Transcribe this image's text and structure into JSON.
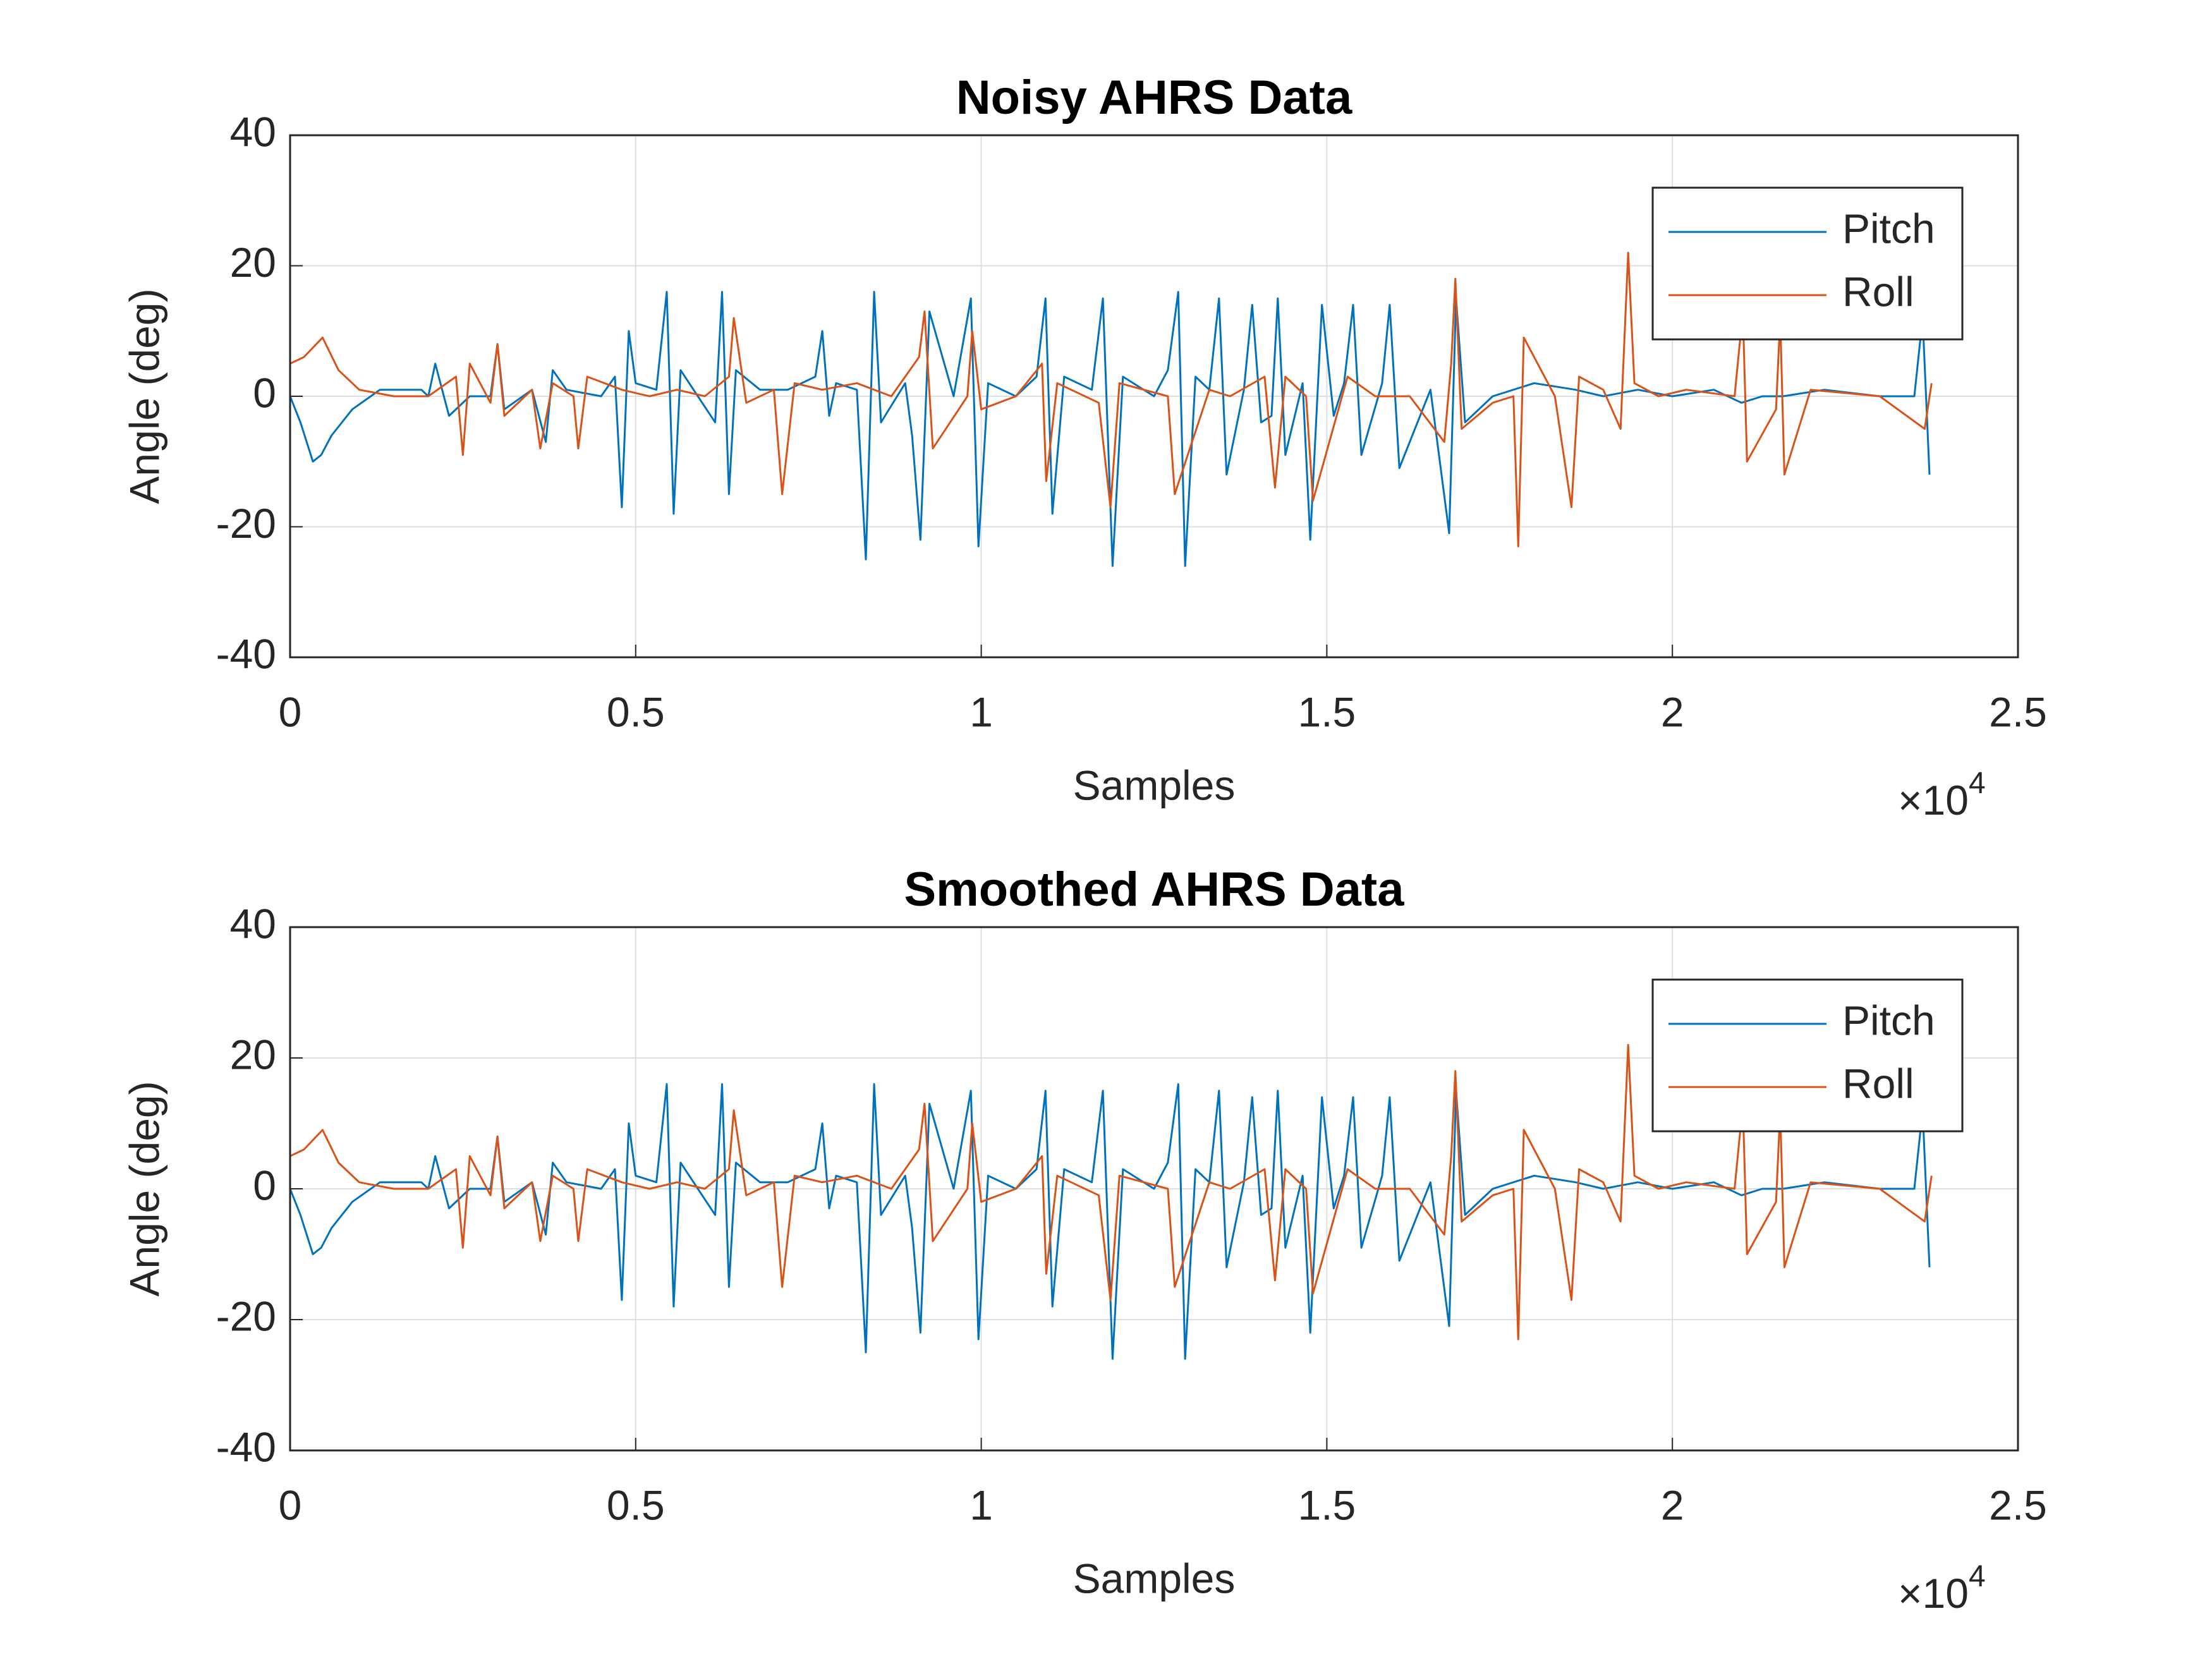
{
  "chart_data": [
    {
      "type": "line",
      "title": "Noisy AHRS Data",
      "xlabel": "Samples",
      "ylabel": "Angle (deg)",
      "x_multiplier": {
        "base": "×10",
        "exponent": "4"
      },
      "xlim": [
        0,
        25000
      ],
      "xticks": [
        0,
        {
          "value": 5000,
          "label": "0.5"
        },
        {
          "value": 10000,
          "label": "1"
        },
        {
          "value": 15000,
          "label": "1.5"
        },
        {
          "value": 20000,
          "label": "2"
        },
        {
          "value": 25000,
          "label": "2.5"
        }
      ],
      "ylim": [
        -40,
        40
      ],
      "yticks": [
        -40,
        -20,
        0,
        20,
        40
      ],
      "grid": true,
      "legend": "upper right",
      "series": [
        {
          "name": "Pitch",
          "color": "#0072bd",
          "x": [
            0,
            150,
            330,
            450,
            600,
            900,
            1300,
            1900,
            2000,
            2100,
            2300,
            2600,
            2900,
            3000,
            3100,
            3500,
            3700,
            3800,
            4000,
            4500,
            4700,
            4800,
            4900,
            5000,
            5300,
            5450,
            5550,
            5650,
            5900,
            6150,
            6250,
            6350,
            6450,
            6800,
            7200,
            7600,
            7700,
            7800,
            7900,
            8200,
            8330,
            8450,
            8550,
            8900,
            9000,
            9120,
            9250,
            9600,
            9850,
            9960,
            10100,
            10500,
            10800,
            10930,
            11030,
            11200,
            11600,
            11760,
            11900,
            12050,
            12500,
            12700,
            12850,
            12950,
            13100,
            13300,
            13440,
            13550,
            13800,
            13920,
            14050,
            14200,
            14290,
            14400,
            14650,
            14760,
            14930,
            15100,
            15250,
            15380,
            15500,
            15800,
            15910,
            16050,
            16500,
            16770,
            16870,
            17000,
            17400,
            18000,
            18600,
            19000,
            19500,
            20000,
            20600,
            21000,
            21300,
            21600,
            22200,
            23000,
            23500,
            23620,
            23720
          ],
          "values": [
            0,
            -4,
            -10,
            -9,
            -6,
            -2,
            1,
            1,
            0,
            5,
            -3,
            0,
            0,
            8,
            -2,
            1,
            -7,
            4,
            1,
            0,
            3,
            -17,
            10,
            2,
            1,
            16,
            -18,
            4,
            0,
            -4,
            16,
            -15,
            4,
            1,
            1,
            3,
            10,
            -3,
            2,
            1,
            -25,
            16,
            -4,
            2,
            -6,
            -22,
            13,
            0,
            15,
            -23,
            2,
            0,
            3,
            15,
            -18,
            3,
            1,
            15,
            -26,
            3,
            0,
            4,
            16,
            -26,
            3,
            1,
            15,
            -12,
            1,
            14,
            -4,
            -3,
            15,
            -9,
            2,
            -22,
            14,
            -3,
            2,
            14,
            -9,
            2,
            14,
            -11,
            1,
            -21,
            15,
            -4,
            0,
            2,
            1,
            0,
            1,
            0,
            1,
            -1,
            0,
            0,
            1,
            0,
            0,
            12,
            -12
          ]
        },
        {
          "name": "Roll",
          "color": "#d95319",
          "x": [
            0,
            200,
            470,
            700,
            1000,
            1500,
            2000,
            2400,
            2500,
            2600,
            2900,
            3000,
            3100,
            3500,
            3620,
            3800,
            4100,
            4170,
            4300,
            4800,
            5200,
            5600,
            6000,
            6350,
            6420,
            6600,
            7000,
            7120,
            7300,
            7700,
            8200,
            8700,
            9100,
            9180,
            9300,
            9800,
            9870,
            10000,
            10500,
            10880,
            10940,
            11100,
            11700,
            11870,
            12000,
            12700,
            12800,
            13300,
            13600,
            14100,
            14250,
            14400,
            14700,
            14800,
            15300,
            15700,
            16200,
            16700,
            16800,
            16860,
            16950,
            17400,
            17700,
            17770,
            17850,
            18300,
            18540,
            18650,
            19000,
            19250,
            19360,
            19450,
            19800,
            20200,
            20900,
            21020,
            21080,
            21500,
            21560,
            21620,
            22000,
            23000,
            23650,
            23750
          ],
          "values": [
            5,
            6,
            9,
            4,
            1,
            0,
            0,
            3,
            -9,
            5,
            -1,
            8,
            -3,
            1,
            -8,
            2,
            0,
            -8,
            3,
            1,
            0,
            1,
            0,
            3,
            12,
            -1,
            1,
            -15,
            2,
            1,
            2,
            0,
            6,
            13,
            -8,
            0,
            10,
            -2,
            0,
            5,
            -13,
            2,
            -1,
            -17,
            2,
            0,
            -15,
            1,
            0,
            3,
            -14,
            3,
            0,
            -16,
            3,
            0,
            0,
            -7,
            5,
            18,
            -5,
            -1,
            0,
            -23,
            9,
            0,
            -17,
            3,
            1,
            -5,
            22,
            2,
            0,
            1,
            0,
            13,
            -10,
            -2,
            12,
            -12,
            1,
            0,
            -5,
            2
          ]
        }
      ]
    },
    {
      "type": "line",
      "title": "Smoothed AHRS Data",
      "xlabel": "Samples",
      "ylabel": "Angle (deg)",
      "x_multiplier": {
        "base": "×10",
        "exponent": "4"
      },
      "xlim": [
        0,
        25000
      ],
      "xticks": [
        0,
        {
          "value": 5000,
          "label": "0.5"
        },
        {
          "value": 10000,
          "label": "1"
        },
        {
          "value": 15000,
          "label": "1.5"
        },
        {
          "value": 20000,
          "label": "2"
        },
        {
          "value": 25000,
          "label": "2.5"
        }
      ],
      "ylim": [
        -40,
        40
      ],
      "yticks": [
        -40,
        -20,
        0,
        20,
        40
      ],
      "grid": true,
      "legend": "upper right",
      "series": [
        {
          "name": "Pitch",
          "color": "#0072bd",
          "x": [
            0,
            150,
            330,
            450,
            600,
            900,
            1300,
            1900,
            2000,
            2100,
            2300,
            2600,
            2900,
            3000,
            3100,
            3500,
            3700,
            3800,
            4000,
            4500,
            4700,
            4800,
            4900,
            5000,
            5300,
            5450,
            5550,
            5650,
            5900,
            6150,
            6250,
            6350,
            6450,
            6800,
            7200,
            7600,
            7700,
            7800,
            7900,
            8200,
            8330,
            8450,
            8550,
            8900,
            9000,
            9120,
            9250,
            9600,
            9850,
            9960,
            10100,
            10500,
            10800,
            10930,
            11030,
            11200,
            11600,
            11760,
            11900,
            12050,
            12500,
            12700,
            12850,
            12950,
            13100,
            13300,
            13440,
            13550,
            13800,
            13920,
            14050,
            14200,
            14290,
            14400,
            14650,
            14760,
            14930,
            15100,
            15250,
            15380,
            15500,
            15800,
            15910,
            16050,
            16500,
            16770,
            16870,
            17000,
            17400,
            18000,
            18600,
            19000,
            19500,
            20000,
            20600,
            21000,
            21300,
            21600,
            22200,
            23000,
            23500,
            23620,
            23720
          ],
          "values": [
            0,
            -4,
            -10,
            -9,
            -6,
            -2,
            1,
            1,
            0,
            5,
            -3,
            0,
            0,
            8,
            -2,
            1,
            -7,
            4,
            1,
            0,
            3,
            -17,
            10,
            2,
            1,
            16,
            -18,
            4,
            0,
            -4,
            16,
            -15,
            4,
            1,
            1,
            3,
            10,
            -3,
            2,
            1,
            -25,
            16,
            -4,
            2,
            -6,
            -22,
            13,
            0,
            15,
            -23,
            2,
            0,
            3,
            15,
            -18,
            3,
            1,
            15,
            -26,
            3,
            0,
            4,
            16,
            -26,
            3,
            1,
            15,
            -12,
            1,
            14,
            -4,
            -3,
            15,
            -9,
            2,
            -22,
            14,
            -3,
            2,
            14,
            -9,
            2,
            14,
            -11,
            1,
            -21,
            15,
            -4,
            0,
            2,
            1,
            0,
            1,
            0,
            1,
            -1,
            0,
            0,
            1,
            0,
            0,
            12,
            -12
          ]
        },
        {
          "name": "Roll",
          "color": "#d95319",
          "x": [
            0,
            200,
            470,
            700,
            1000,
            1500,
            2000,
            2400,
            2500,
            2600,
            2900,
            3000,
            3100,
            3500,
            3620,
            3800,
            4100,
            4170,
            4300,
            4800,
            5200,
            5600,
            6000,
            6350,
            6420,
            6600,
            7000,
            7120,
            7300,
            7700,
            8200,
            8700,
            9100,
            9180,
            9300,
            9800,
            9870,
            10000,
            10500,
            10880,
            10940,
            11100,
            11700,
            11870,
            12000,
            12700,
            12800,
            13300,
            13600,
            14100,
            14250,
            14400,
            14700,
            14800,
            15300,
            15700,
            16200,
            16700,
            16800,
            16860,
            16950,
            17400,
            17700,
            17770,
            17850,
            18300,
            18540,
            18650,
            19000,
            19250,
            19360,
            19450,
            19800,
            20200,
            20900,
            21020,
            21080,
            21500,
            21560,
            21620,
            22000,
            23000,
            23650,
            23750
          ],
          "values": [
            5,
            6,
            9,
            4,
            1,
            0,
            0,
            3,
            -9,
            5,
            -1,
            8,
            -3,
            1,
            -8,
            2,
            0,
            -8,
            3,
            1,
            0,
            1,
            0,
            3,
            12,
            -1,
            1,
            -15,
            2,
            1,
            2,
            0,
            6,
            13,
            -8,
            0,
            10,
            -2,
            0,
            5,
            -13,
            2,
            -1,
            -17,
            2,
            0,
            -15,
            1,
            0,
            3,
            -14,
            3,
            0,
            -16,
            3,
            0,
            0,
            -7,
            5,
            18,
            -5,
            -1,
            0,
            -23,
            9,
            0,
            -17,
            3,
            1,
            -5,
            22,
            2,
            0,
            1,
            0,
            13,
            -10,
            -2,
            12,
            -12,
            1,
            0,
            -5,
            2
          ]
        }
      ]
    }
  ]
}
